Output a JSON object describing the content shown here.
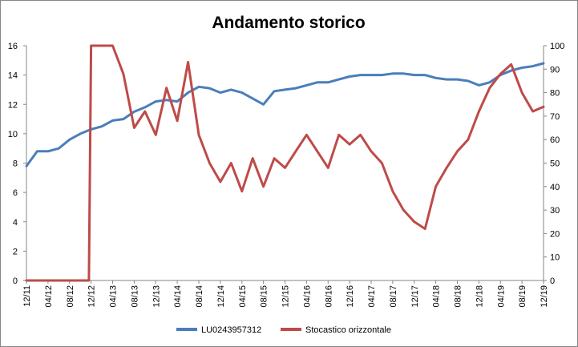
{
  "chart_data": {
    "type": "line",
    "title": "Andamento storico",
    "x_tick_labels": [
      "12/11",
      "04/12",
      "08/12",
      "12/12",
      "04/13",
      "08/13",
      "12/13",
      "04/14",
      "08/14",
      "12/14",
      "04/15",
      "08/15",
      "12/15",
      "04/16",
      "08/16",
      "12/16",
      "04/17",
      "08/17",
      "12/17",
      "04/18",
      "08/18",
      "12/18",
      "04/19",
      "08/19",
      "12/19"
    ],
    "y_left": {
      "min": 0,
      "max": 16,
      "ticks": [
        "0",
        "2",
        "4",
        "6",
        "8",
        "10",
        "12",
        "14",
        "16"
      ]
    },
    "y_right": {
      "min": 0,
      "max": 100,
      "ticks": [
        "0",
        "10",
        "20",
        "30",
        "40",
        "50",
        "60",
        "70",
        "80",
        "90",
        "100"
      ]
    },
    "grid": false,
    "legend_position": "bottom",
    "series": [
      {
        "name": "LU0243957312",
        "axis": "left",
        "color": "#4a7ebb",
        "x": [
          0,
          1,
          2,
          3,
          4,
          5,
          6,
          7,
          8,
          9,
          10,
          11,
          12,
          13,
          14,
          15,
          16,
          17,
          18,
          19,
          20,
          21,
          22,
          23,
          24,
          25,
          26,
          27,
          28,
          29,
          30,
          31,
          32,
          33,
          34,
          35,
          36,
          37,
          38,
          39,
          40,
          41,
          42,
          43,
          44,
          45,
          46,
          47,
          48
        ],
        "values": [
          7.8,
          8.8,
          8.8,
          9.0,
          9.6,
          10.0,
          10.3,
          10.5,
          10.9,
          11.0,
          11.5,
          11.8,
          12.2,
          12.3,
          12.2,
          12.8,
          13.2,
          13.1,
          12.8,
          13.0,
          12.8,
          12.4,
          12.0,
          12.9,
          13.0,
          13.1,
          13.3,
          13.5,
          13.5,
          13.7,
          13.9,
          14.0,
          14.0,
          14.0,
          14.1,
          14.1,
          14.0,
          14.0,
          13.8,
          13.7,
          13.7,
          13.6,
          13.3,
          13.5,
          14.0,
          14.3,
          14.5,
          14.6,
          14.8
        ]
      },
      {
        "name": "Stocastico orizzontale",
        "axis": "right",
        "color": "#be4b48",
        "x": [
          0,
          5.8,
          6,
          6.5,
          7,
          8,
          9,
          10,
          11,
          12,
          13,
          14,
          15,
          16,
          17,
          18,
          19,
          20,
          21,
          22,
          23,
          24,
          25,
          26,
          27,
          28,
          29,
          30,
          31,
          32,
          33,
          34,
          35,
          36,
          37,
          38,
          39,
          40,
          41,
          42,
          43,
          44,
          45,
          46,
          47,
          48
        ],
        "values": [
          0,
          0,
          100,
          100,
          100,
          100,
          88,
          65,
          72,
          62,
          82,
          68,
          93,
          62,
          50,
          42,
          50,
          38,
          52,
          40,
          52,
          48,
          55,
          62,
          55,
          48,
          62,
          58,
          62,
          55,
          50,
          38,
          30,
          25,
          22,
          40,
          48,
          55,
          60,
          72,
          82,
          88,
          92,
          80,
          72,
          74
        ]
      }
    ],
    "x_range": [
      0,
      48
    ]
  }
}
